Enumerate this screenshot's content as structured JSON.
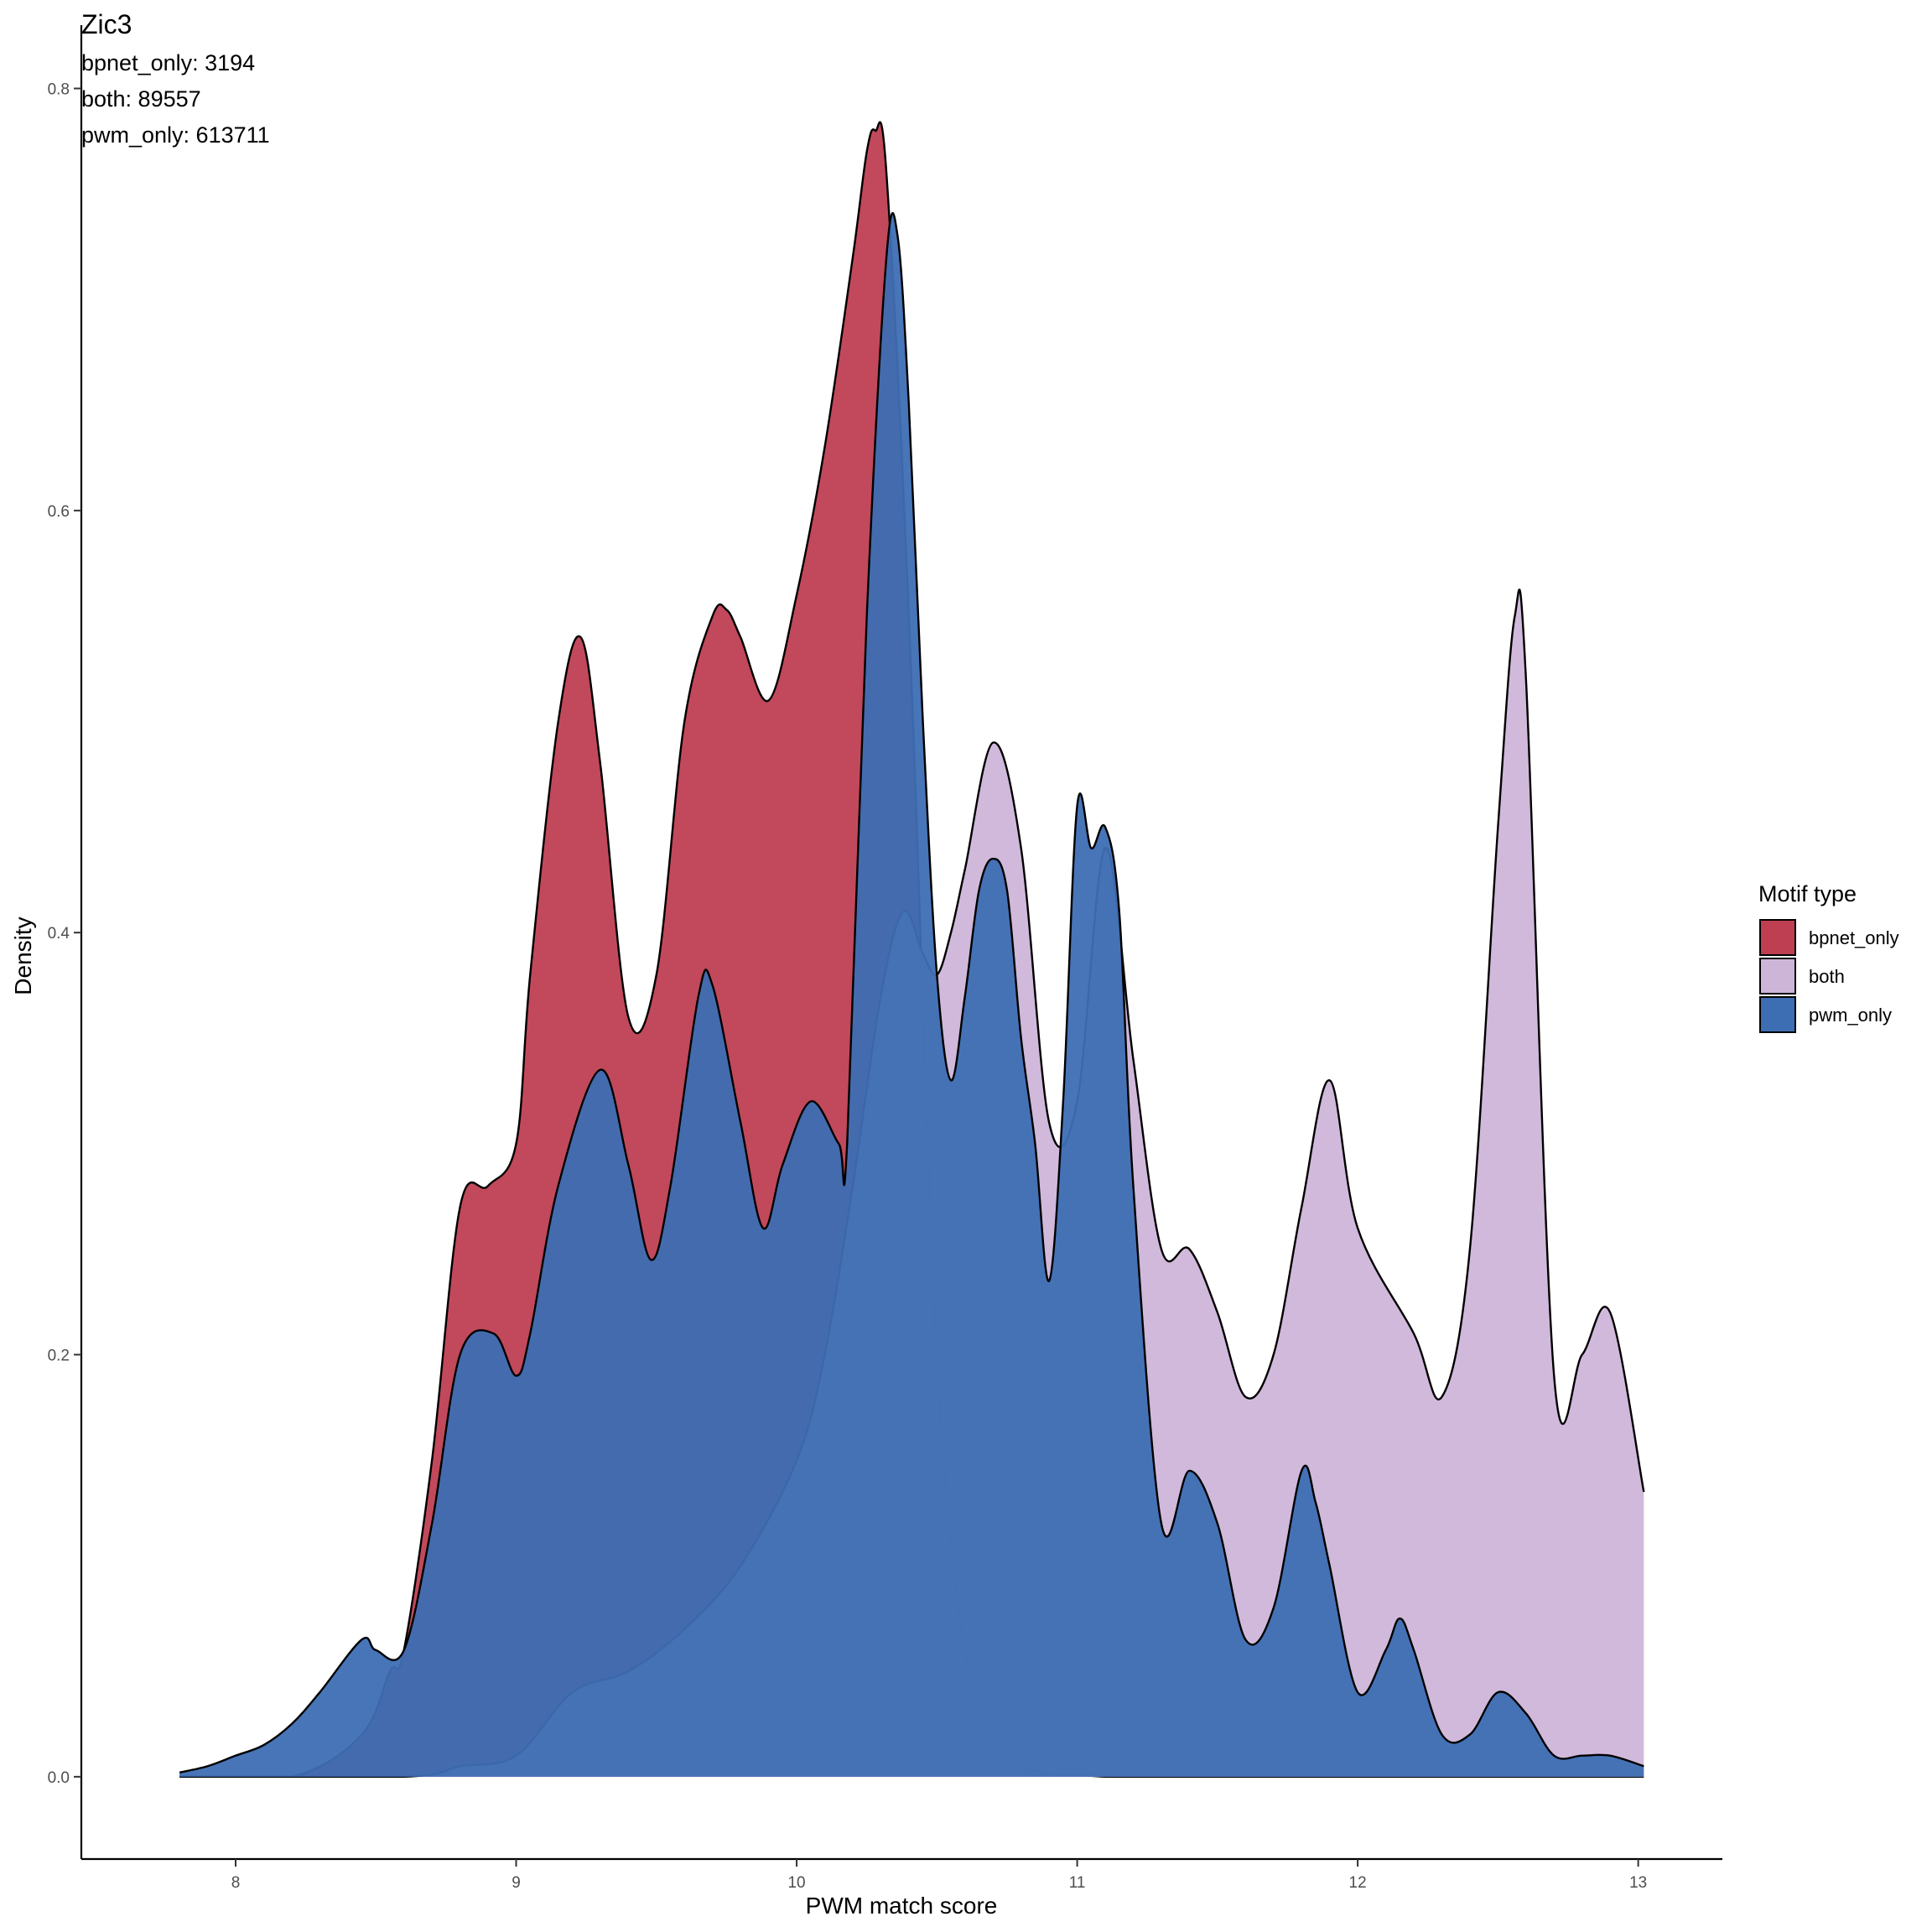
{
  "chart_data": {
    "type": "area",
    "title": "Zic3",
    "annotations": [
      "bpnet_only: 3194",
      "both: 89557",
      "pwm_only: 613711"
    ],
    "xlabel": "PWM match score",
    "ylabel": "Density",
    "xlim": [
      7.45,
      13.3
    ],
    "ylim": [
      -0.039,
      0.83
    ],
    "x_ticks": [
      8,
      9,
      10,
      11,
      12,
      13
    ],
    "y_ticks": [
      0.0,
      0.2,
      0.4,
      0.6,
      0.8
    ],
    "x_tick_labels": [
      "8",
      "9",
      "10",
      "11",
      "12",
      "13"
    ],
    "y_tick_labels": [
      "0.0",
      "0.2",
      "0.4",
      "0.6",
      "0.8"
    ],
    "grid": false,
    "legend": {
      "title": "Motif type",
      "position": "right"
    },
    "series": [
      {
        "name": "bpnet_only",
        "color": "#be3f52",
        "x": [
          7.8,
          8.2,
          8.45,
          8.55,
          8.6,
          8.7,
          8.8,
          8.9,
          9.0,
          9.05,
          9.15,
          9.23,
          9.3,
          9.4,
          9.5,
          9.6,
          9.7,
          9.75,
          9.8,
          9.9,
          10.0,
          10.1,
          10.2,
          10.25,
          10.28,
          10.32,
          10.4,
          10.5,
          10.6,
          10.7,
          10.8,
          10.9,
          11.0,
          11.1,
          11.2,
          11.4,
          11.6,
          11.8,
          12.0,
          13.02
        ],
        "y": [
          0.0,
          0.0,
          0.02,
          0.05,
          0.06,
          0.15,
          0.27,
          0.28,
          0.3,
          0.38,
          0.5,
          0.54,
          0.48,
          0.36,
          0.38,
          0.5,
          0.55,
          0.553,
          0.54,
          0.51,
          0.56,
          0.63,
          0.72,
          0.77,
          0.78,
          0.76,
          0.55,
          0.2,
          0.06,
          0.02,
          0.005,
          0.002,
          0.001,
          0.0,
          0.0,
          0.0,
          0.0,
          0.0,
          0.0,
          0.0
        ]
      },
      {
        "name": "both",
        "color": "#cdb5d8",
        "x": [
          7.8,
          8.6,
          8.8,
          9.0,
          9.2,
          9.4,
          9.6,
          9.8,
          10.0,
          10.1,
          10.2,
          10.3,
          10.38,
          10.45,
          10.5,
          10.55,
          10.6,
          10.7,
          10.8,
          10.9,
          11.0,
          11.1,
          11.2,
          11.3,
          11.4,
          11.5,
          11.6,
          11.7,
          11.8,
          11.9,
          12.0,
          12.2,
          12.3,
          12.4,
          12.5,
          12.56,
          12.6,
          12.7,
          12.8,
          12.9,
          13.02
        ],
        "y": [
          0.0,
          0.0,
          0.005,
          0.01,
          0.04,
          0.05,
          0.07,
          0.1,
          0.15,
          0.2,
          0.28,
          0.37,
          0.41,
          0.39,
          0.38,
          0.4,
          0.43,
          0.49,
          0.44,
          0.31,
          0.32,
          0.44,
          0.34,
          0.25,
          0.25,
          0.22,
          0.18,
          0.2,
          0.27,
          0.33,
          0.26,
          0.21,
          0.18,
          0.25,
          0.45,
          0.55,
          0.52,
          0.19,
          0.2,
          0.22,
          0.135
        ]
      },
      {
        "name": "pwm_only",
        "color": "#3d6eb3",
        "x": [
          7.8,
          7.9,
          8.0,
          8.1,
          8.2,
          8.3,
          8.45,
          8.5,
          8.6,
          8.7,
          8.8,
          8.92,
          9.0,
          9.05,
          9.15,
          9.3,
          9.4,
          9.48,
          9.55,
          9.65,
          9.7,
          9.8,
          9.88,
          9.95,
          10.05,
          10.15,
          10.18,
          10.25,
          10.32,
          10.36,
          10.4,
          10.45,
          10.5,
          10.55,
          10.6,
          10.65,
          10.7,
          10.75,
          10.8,
          10.85,
          10.9,
          10.95,
          11.0,
          11.05,
          11.1,
          11.15,
          11.2,
          11.3,
          11.4,
          11.5,
          11.6,
          11.7,
          11.8,
          11.85,
          11.9,
          12.0,
          12.1,
          12.15,
          12.2,
          12.3,
          12.4,
          12.5,
          12.6,
          12.7,
          12.8,
          12.9,
          13.02
        ],
        "y": [
          0.002,
          0.005,
          0.01,
          0.015,
          0.025,
          0.04,
          0.065,
          0.06,
          0.06,
          0.12,
          0.2,
          0.21,
          0.19,
          0.21,
          0.28,
          0.335,
          0.29,
          0.245,
          0.28,
          0.37,
          0.375,
          0.31,
          0.26,
          0.29,
          0.32,
          0.3,
          0.3,
          0.55,
          0.72,
          0.73,
          0.65,
          0.5,
          0.38,
          0.33,
          0.37,
          0.42,
          0.435,
          0.42,
          0.35,
          0.3,
          0.235,
          0.32,
          0.46,
          0.44,
          0.45,
          0.41,
          0.28,
          0.12,
          0.145,
          0.12,
          0.065,
          0.08,
          0.145,
          0.13,
          0.1,
          0.04,
          0.06,
          0.075,
          0.06,
          0.02,
          0.02,
          0.04,
          0.03,
          0.01,
          0.01,
          0.01,
          0.005
        ]
      }
    ]
  }
}
